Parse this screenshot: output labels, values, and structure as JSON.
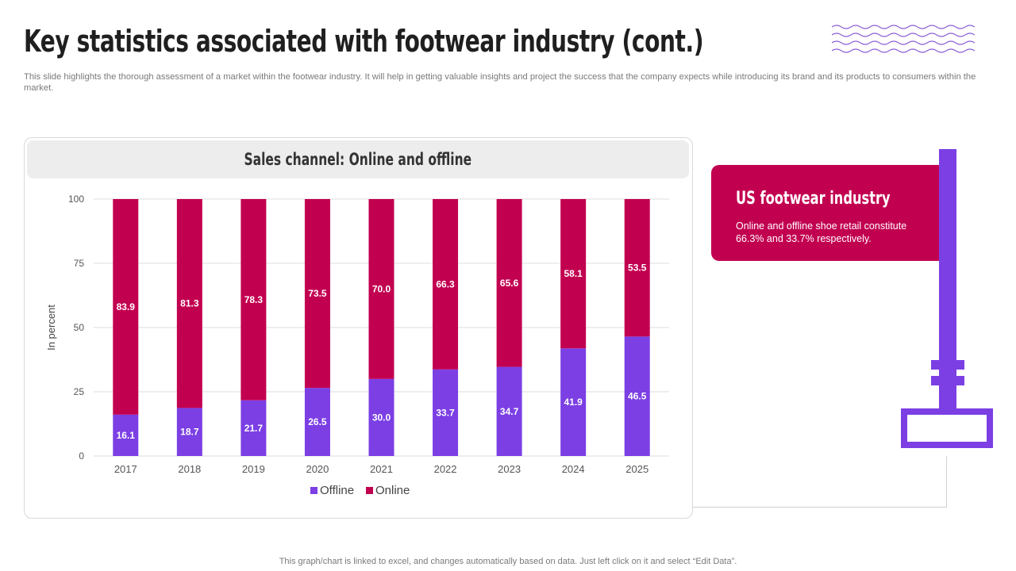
{
  "page": {
    "title": "Key statistics associated with footwear industry (cont.)",
    "subtitle": "This slide highlights the thorough assessment of a market within the footwear industry. It will help in getting valuable insights and project the success that the company expects while introducing its brand and its products to consumers within the market.",
    "footer": "This graph/chart is linked to excel,  and changes automatically based on data. Just left click on it and select “Edit Data”."
  },
  "info_card": {
    "title": "US footwear industry",
    "text": "Online and offline  shoe retail constitute 66.3% and 33.7% respectively."
  },
  "colors": {
    "offline": "#7b3fe4",
    "online": "#c20050",
    "pole": "#7b3fe4",
    "grid": "#dddddd",
    "waves": "#8a5fd6"
  },
  "icons": {
    "waves": "wavy-lines-decoration",
    "pole": "signpost-decoration"
  },
  "chart_data": {
    "type": "bar",
    "stacked": true,
    "title": "Sales channel: Online and offline",
    "ylabel": "In percent",
    "xlabel": "",
    "ylim": [
      0,
      100
    ],
    "yticks": [
      0,
      25,
      50,
      75,
      100
    ],
    "categories": [
      "2017",
      "2018",
      "2019",
      "2020",
      "2021",
      "2022",
      "2023",
      "2024",
      "2025"
    ],
    "series": [
      {
        "name": "Offline",
        "values": [
          16.1,
          18.7,
          21.7,
          26.5,
          30.0,
          33.7,
          34.7,
          41.9,
          46.5
        ]
      },
      {
        "name": "Online",
        "values": [
          83.9,
          81.3,
          78.3,
          73.5,
          70.0,
          66.3,
          65.6,
          58.1,
          53.5
        ]
      }
    ],
    "value_labels": {
      "Offline": [
        "16.1",
        "18.7",
        "21.7",
        "26.5",
        "30.0",
        "33.7",
        "34.7",
        "41.9",
        "46.5"
      ],
      "Online": [
        "83.9",
        "81.3",
        "78.3",
        "73.5",
        "70.0",
        "66.3",
        "65.6",
        "58.1",
        "53.5"
      ]
    },
    "legend": {
      "position": "bottom",
      "entries": [
        "Offline",
        "Online"
      ]
    },
    "grid": true
  }
}
